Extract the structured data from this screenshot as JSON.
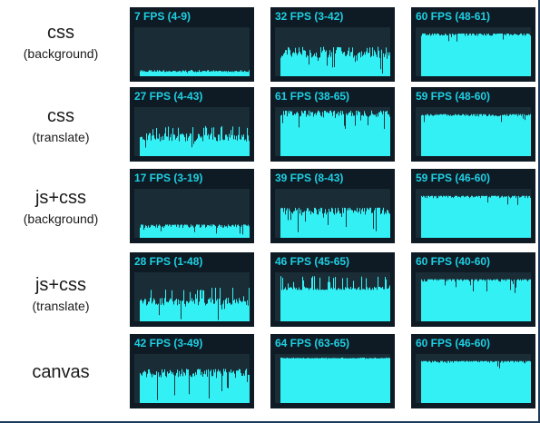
{
  "row_labels": [
    {
      "line1": "css",
      "line2": "(background)"
    },
    {
      "line1": "css",
      "line2": "(translate)"
    },
    {
      "line1": "js+css",
      "line2": "(background)"
    },
    {
      "line1": "js+css",
      "line2": "(translate)"
    },
    {
      "line1": "canvas",
      "line2": ""
    }
  ],
  "meters": [
    [
      {
        "caption": "7 FPS (4-9)",
        "fps": 7,
        "min": 4,
        "max": 9
      },
      {
        "caption": "32 FPS (3-42)",
        "fps": 32,
        "min": 3,
        "max": 42
      },
      {
        "caption": "60 FPS (48-61)",
        "fps": 60,
        "min": 48,
        "max": 61
      }
    ],
    [
      {
        "caption": "27 FPS (4-43)",
        "fps": 27,
        "min": 4,
        "max": 43
      },
      {
        "caption": "61 FPS (38-65)",
        "fps": 61,
        "min": 38,
        "max": 65
      },
      {
        "caption": "59 FPS (48-60)",
        "fps": 59,
        "min": 48,
        "max": 60
      }
    ],
    [
      {
        "caption": "17 FPS (3-19)",
        "fps": 17,
        "min": 3,
        "max": 19
      },
      {
        "caption": "39 FPS (8-43)",
        "fps": 39,
        "min": 8,
        "max": 43
      },
      {
        "caption": "59 FPS (46-60)",
        "fps": 59,
        "min": 46,
        "max": 60
      }
    ],
    [
      {
        "caption": "28 FPS (1-48)",
        "fps": 28,
        "min": 1,
        "max": 48
      },
      {
        "caption": "46 FPS (45-65)",
        "fps": 46,
        "min": 45,
        "max": 65
      },
      {
        "caption": "60 FPS (40-60)",
        "fps": 60,
        "min": 40,
        "max": 60
      }
    ],
    [
      {
        "caption": "42 FPS (3-49)",
        "fps": 42,
        "min": 3,
        "max": 49
      },
      {
        "caption": "64 FPS (63-65)",
        "fps": 64,
        "min": 63,
        "max": 65
      },
      {
        "caption": "60 FPS (46-60)",
        "fps": 60,
        "min": 46,
        "max": 60
      }
    ]
  ],
  "colors": {
    "meter_bg": "#0e1a24",
    "graph_bg": "#1a2c36",
    "accent": "#1dd0e3",
    "bar": "#33f0f5"
  }
}
